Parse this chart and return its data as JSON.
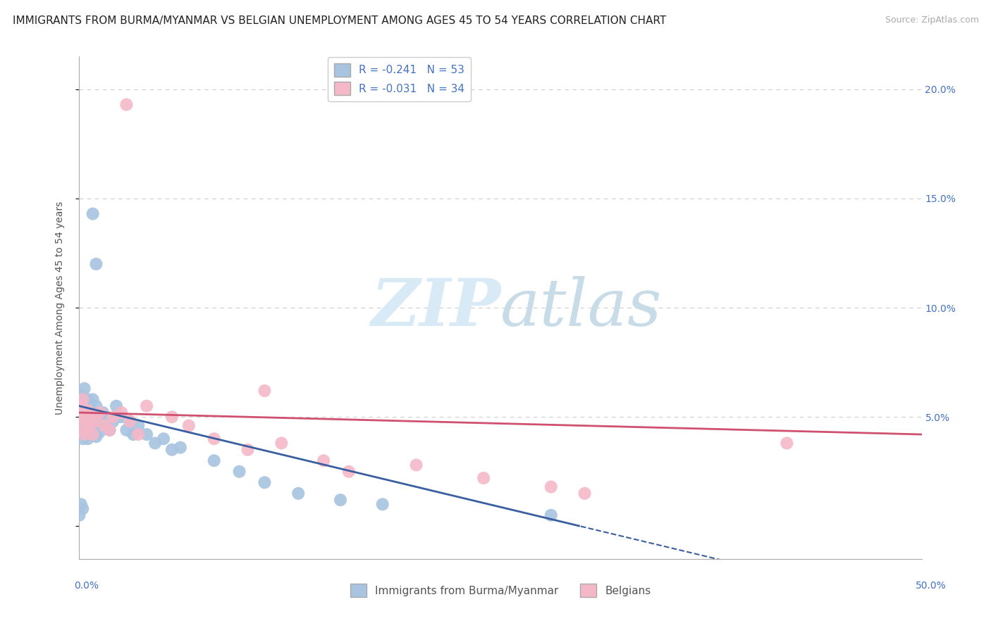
{
  "title": "IMMIGRANTS FROM BURMA/MYANMAR VS BELGIAN UNEMPLOYMENT AMONG AGES 45 TO 54 YEARS CORRELATION CHART",
  "source": "Source: ZipAtlas.com",
  "ylabel": "Unemployment Among Ages 45 to 54 years",
  "xlim": [
    0.0,
    0.5
  ],
  "ylim": [
    -0.015,
    0.215
  ],
  "legend_r_blue": "-0.241",
  "legend_n_blue": "53",
  "legend_r_pink": "-0.031",
  "legend_n_pink": "34",
  "blue_color": "#a8c4e0",
  "pink_color": "#f4b8c8",
  "blue_line_color": "#3a5fa0",
  "pink_line_color": "#d05070",
  "grid_color": "#cccccc",
  "background_color": "#ffffff",
  "title_fontsize": 11,
  "axis_label_fontsize": 10,
  "tick_fontsize": 10,
  "watermark_zip": "ZIP",
  "watermark_atlas": "atlas"
}
